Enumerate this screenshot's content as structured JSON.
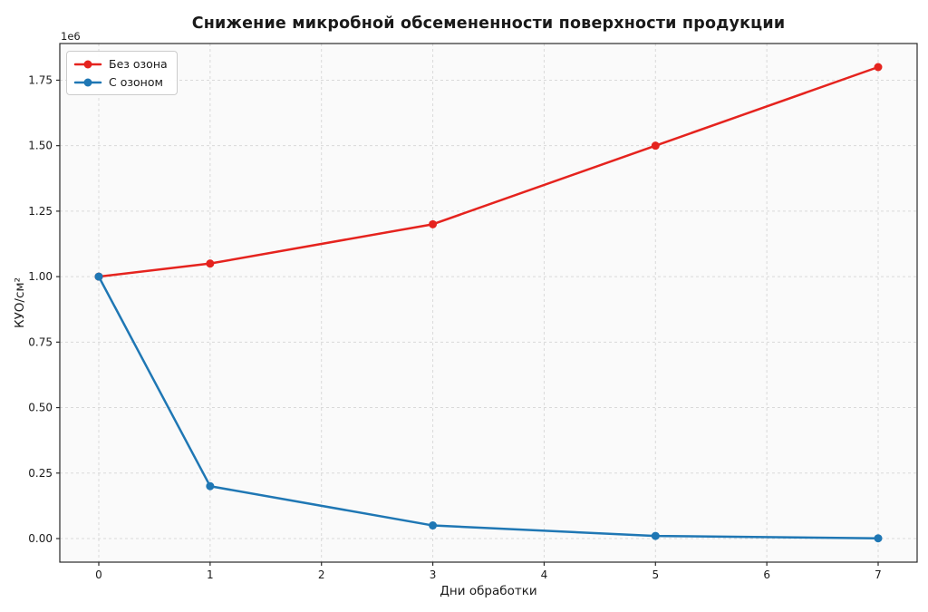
{
  "chart_data": {
    "type": "line",
    "title": "Снижение микробной обсемененности поверхности продукции",
    "xlabel": "Дни обработки",
    "ylabel": "КУО/см²",
    "y_offset_text": "1e6",
    "x": [
      0,
      1,
      3,
      5,
      7
    ],
    "series": [
      {
        "name": "Без озона",
        "color": "#e5231e",
        "values": [
          1000000,
          1050000,
          1200000,
          1500000,
          1800000
        ]
      },
      {
        "name": "С озоном",
        "color": "#1f77b4",
        "values": [
          1000000,
          200000,
          50000,
          10000,
          1000
        ]
      }
    ],
    "xlim": [
      -0.35,
      7.35
    ],
    "ylim": [
      -90000,
      1890000
    ],
    "xticks": [
      0,
      1,
      2,
      3,
      4,
      5,
      6,
      7
    ],
    "xtick_labels": [
      "0",
      "1",
      "2",
      "3",
      "4",
      "5",
      "6",
      "7"
    ],
    "yticks": [
      0,
      250000,
      500000,
      750000,
      1000000,
      1250000,
      1500000,
      1750000
    ],
    "ytick_labels": [
      "0.00",
      "0.25",
      "0.50",
      "0.75",
      "1.00",
      "1.25",
      "1.50",
      "1.75"
    ],
    "grid": true,
    "grid_style": "dashed",
    "legend_position": "upper left",
    "line_width": 2.5,
    "marker": "circle",
    "marker_radius": 4.5
  },
  "figure": {
    "background": "#ffffff",
    "plot_background": "#fafafa",
    "grid_color": "#d9d9d9",
    "spine_color": "#2a2a2a",
    "tick_color": "#2a2a2a",
    "text_color": "#1a1a1a",
    "legend_border_color": "#cccccc"
  }
}
